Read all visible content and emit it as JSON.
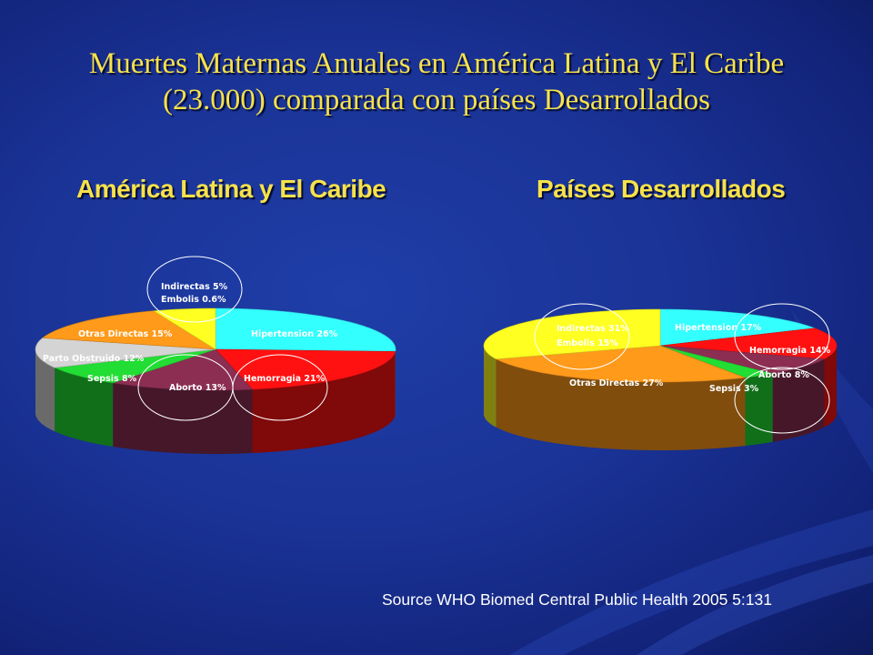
{
  "title": "Muertes Maternas Anuales en América Latina y El Caribe (23.000) comparada con países Desarrollados",
  "source": "Source WHO Biomed Central Public Health 2005 5:131",
  "chart_data": [
    {
      "type": "pie",
      "title": "América Latina y El Caribe",
      "labels": [
        "Hipertension 26%",
        "Hemorragia 21%",
        "Aborto 13%",
        "Sepsis 8%",
        "Parto Obstruido 12%",
        "Otras Directas 15%",
        "Indirectas 5% Embolis 0.6%"
      ],
      "values": [
        26,
        21,
        13,
        8,
        12,
        15,
        5.6
      ],
      "colors": [
        "#33ffff",
        "#ff1111",
        "#8b2e52",
        "#22dd33",
        "#d4d4d4",
        "#ff9a1a",
        "#ffff22"
      ]
    },
    {
      "type": "pie",
      "title": "Países Desarrollados",
      "labels": [
        "Hipertension 17%",
        "Hemorragia 14%",
        "Aborto 8%",
        "Sepsis 3%",
        "Otras Directas 27%",
        "Indirectas 31% Embolis 15%"
      ],
      "values": [
        17,
        14,
        8,
        3,
        27,
        31
      ],
      "colors": [
        "#33ffff",
        "#ff1111",
        "#8b2e52",
        "#22dd33",
        "#ff9a1a",
        "#ffff22"
      ]
    }
  ]
}
